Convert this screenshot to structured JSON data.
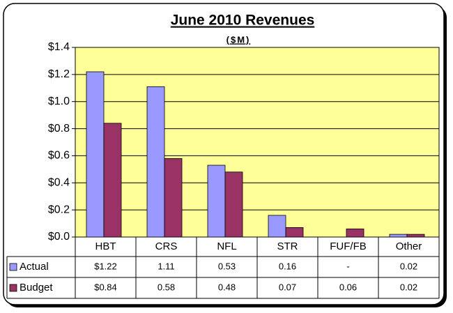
{
  "chart_data": {
    "type": "bar",
    "title": "June 2010 Revenues",
    "subtitle": "($M)",
    "categories": [
      "HBT",
      "CRS",
      "NFL",
      "STR",
      "FUF/FB",
      "Other"
    ],
    "series": [
      {
        "name": "Actual",
        "color": "#9999ff",
        "values": [
          1.22,
          1.11,
          0.53,
          0.16,
          null,
          0.02
        ],
        "value_labels": [
          "$1.22",
          "1.11",
          "0.53",
          "0.16",
          "-",
          "0.02"
        ]
      },
      {
        "name": "Budget",
        "color": "#993366",
        "values": [
          0.84,
          0.58,
          0.48,
          0.07,
          0.06,
          0.02
        ],
        "value_labels": [
          "$0.84",
          "0.58",
          "0.48",
          "0.07",
          "0.06",
          "0.02"
        ]
      }
    ],
    "ylim": [
      0,
      1.4
    ],
    "yticks": [
      {
        "value": 0,
        "label": "$0.0"
      },
      {
        "value": 0.2,
        "label": "$0.2"
      },
      {
        "value": 0.4,
        "label": "$0.4"
      },
      {
        "value": 0.6,
        "label": "$0.6"
      },
      {
        "value": 0.8,
        "label": "$0.8"
      },
      {
        "value": 1.0,
        "label": "$1.0"
      },
      {
        "value": 1.2,
        "label": "$1.2"
      },
      {
        "value": 1.4,
        "label": "$1.4"
      }
    ],
    "grid": true,
    "plot_background": "#ffff99"
  }
}
